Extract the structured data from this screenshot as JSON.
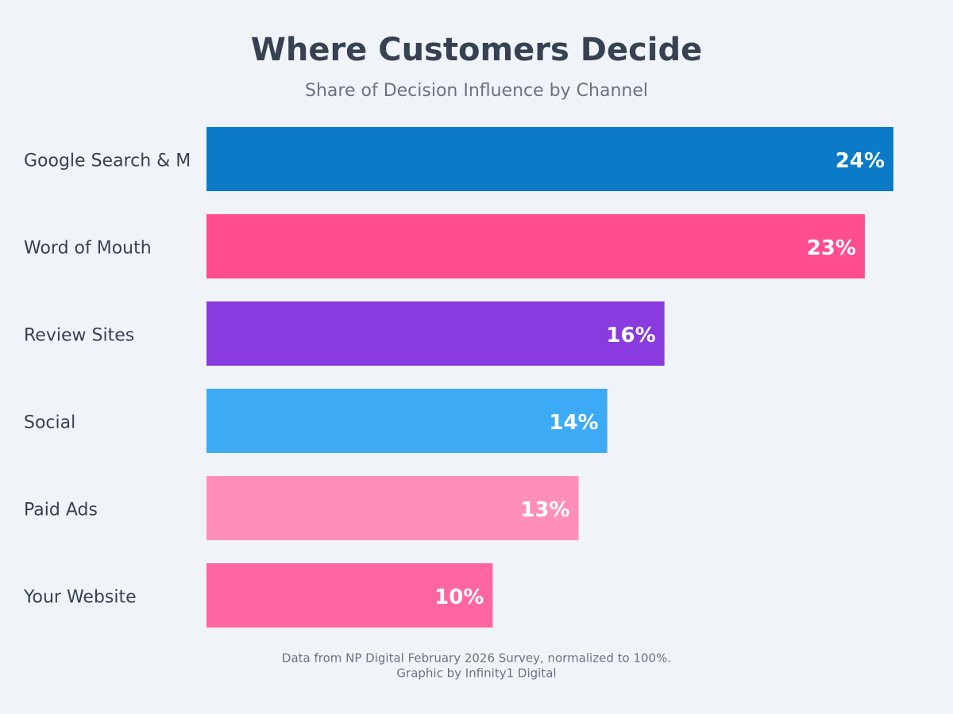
{
  "chart_data": {
    "type": "bar",
    "orientation": "horizontal",
    "title": "Where Customers Decide",
    "subtitle": "Share of Decision Influence by Channel",
    "categories": [
      "Google Search & M",
      "Word of Mouth",
      "Review Sites",
      "Social",
      "Paid Ads",
      "Your Website"
    ],
    "values": [
      24,
      23,
      16,
      14,
      13,
      10
    ],
    "value_labels": [
      "24%",
      "23%",
      "16%",
      "14%",
      "13%",
      "10%"
    ],
    "colors": [
      "#0b7bc8",
      "#ff4d8f",
      "#8a3be0",
      "#3daaf5",
      "#ff8fb8",
      "#ff66a1"
    ],
    "footer": [
      "Data from NP Digital February 2026 Survey, normalized to 100%.",
      "Graphic by Infinity1 Digital"
    ]
  }
}
